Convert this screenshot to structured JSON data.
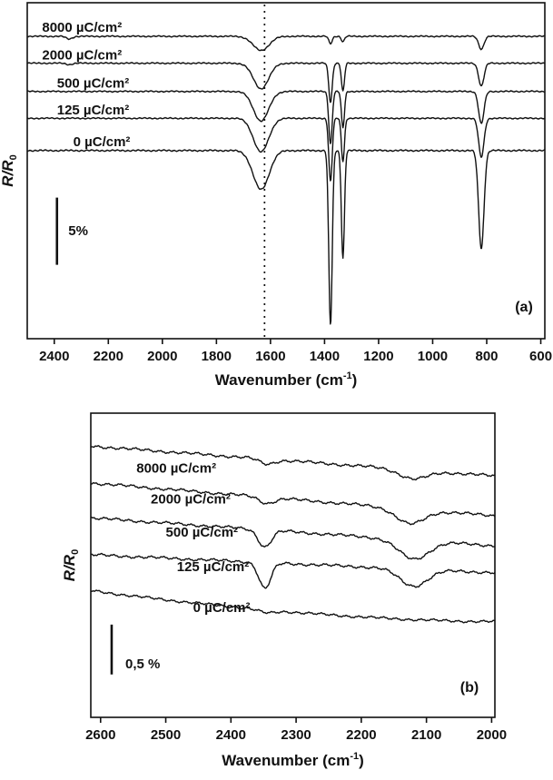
{
  "figure": {
    "background": "#ffffff",
    "ink_color": "#111111"
  },
  "chart_data": [
    {
      "id": "panel_a",
      "type": "line",
      "panel_label": "(a)",
      "xlabel": {
        "pre": "Wavenumber (cm",
        "sup": "-1",
        "post": ")"
      },
      "ylabel": {
        "main": "R/R",
        "sub": "0"
      },
      "x_axis": {
        "domain": [
          2500,
          585
        ],
        "ticks": [
          2400,
          2200,
          2000,
          1800,
          1600,
          1400,
          1200,
          1000,
          800,
          600
        ],
        "reversed": true
      },
      "y_axis": {
        "domain": [
          0,
          25
        ],
        "unit": "percent_reflectance_offset",
        "ticks": []
      },
      "grid": false,
      "dotted_line_x": 1622,
      "scale_bar": {
        "label": "5%",
        "x": 2390,
        "y_from": 14.5,
        "y_to": 19.5,
        "label_x": 2348,
        "label_y": 17.3
      },
      "series": [
        {
          "name": "8000 µC/cm²",
          "baseline_start": 2.5,
          "baseline_end": 2.5,
          "noise": 0.06,
          "shape": "linear",
          "peaks": [
            {
              "center": 2345,
              "sigma": 16,
              "depth": 0.2
            },
            {
              "center": 1635,
              "sigma": 42,
              "depth": 1.05
            },
            {
              "center": 1378,
              "sigma": 9,
              "depth": 0.55
            },
            {
              "center": 1332,
              "sigma": 8,
              "depth": 0.4
            },
            {
              "center": 820,
              "sigma": 14,
              "depth": 0.95
            }
          ],
          "label_pos": {
            "x": 2445,
            "y": 1.9
          }
        },
        {
          "name": "2000 µC/cm²",
          "baseline_start": 4.5,
          "baseline_end": 4.5,
          "noise": 0.06,
          "shape": "linear",
          "peaks": [
            {
              "center": 2345,
              "sigma": 16,
              "depth": 0.1
            },
            {
              "center": 1635,
              "sigma": 40,
              "depth": 1.9
            },
            {
              "center": 1378,
              "sigma": 9,
              "depth": 2.9
            },
            {
              "center": 1332,
              "sigma": 8,
              "depth": 2.1
            },
            {
              "center": 820,
              "sigma": 14,
              "depth": 1.7
            }
          ],
          "label_pos": {
            "x": 2445,
            "y": 3.95
          }
        },
        {
          "name": "500 µC/cm²",
          "baseline_start": 6.6,
          "baseline_end": 6.6,
          "noise": 0.06,
          "shape": "linear",
          "peaks": [
            {
              "center": 1635,
              "sigma": 40,
              "depth": 2.2
            },
            {
              "center": 1378,
              "sigma": 9,
              "depth": 3.9
            },
            {
              "center": 1332,
              "sigma": 8,
              "depth": 2.7
            },
            {
              "center": 820,
              "sigma": 14,
              "depth": 2.4
            }
          ],
          "label_pos": {
            "x": 2390,
            "y": 6.05
          }
        },
        {
          "name": "125 µC/cm²",
          "baseline_start": 8.6,
          "baseline_end": 8.6,
          "noise": 0.06,
          "shape": "linear",
          "peaks": [
            {
              "center": 1635,
              "sigma": 40,
              "depth": 2.5
            },
            {
              "center": 1378,
              "sigma": 9,
              "depth": 4.7
            },
            {
              "center": 1332,
              "sigma": 8,
              "depth": 3.2
            },
            {
              "center": 820,
              "sigma": 14,
              "depth": 2.9
            }
          ],
          "label_pos": {
            "x": 2390,
            "y": 8.05
          }
        },
        {
          "name": "0 µC/cm²",
          "baseline_start": 11.0,
          "baseline_end": 11.0,
          "noise": 0.07,
          "shape": "linear",
          "peaks": [
            {
              "center": 1635,
              "sigma": 42,
              "depth": 2.9
            },
            {
              "center": 1378,
              "sigma": 9,
              "depth": 13.0
            },
            {
              "center": 1332,
              "sigma": 8,
              "depth": 8.0
            },
            {
              "center": 820,
              "sigma": 14,
              "depth": 7.3
            }
          ],
          "label_pos": {
            "x": 2330,
            "y": 10.4
          }
        }
      ]
    },
    {
      "id": "panel_b",
      "type": "line",
      "panel_label": "(b)",
      "xlabel": {
        "pre": "Wavenumber (cm",
        "sup": "-1",
        "post": ")"
      },
      "ylabel": {
        "main": "R/R",
        "sub": "0"
      },
      "x_axis": {
        "domain": [
          2615,
          1995
        ],
        "ticks": [
          2600,
          2500,
          2400,
          2300,
          2200,
          2100,
          2000
        ],
        "reversed": true
      },
      "y_axis": {
        "domain": [
          0,
          3.05
        ],
        "unit": "percent_reflectance_offset",
        "ticks": []
      },
      "grid": false,
      "dotted_line_x": null,
      "scale_bar": {
        "label": "0,5 %",
        "x": 2583,
        "y_from": 2.12,
        "y_to": 2.62,
        "label_x": 2562,
        "label_y": 2.56
      },
      "series": [
        {
          "name": "8000 µC/cm²",
          "baseline_start": 0.33,
          "baseline_end": 0.63,
          "noise": 0.018,
          "shape": "linear",
          "peaks": [
            {
              "center": 2345,
              "sigma": 16,
              "depth": 0.05
            },
            {
              "center": 2120,
              "sigma": 30,
              "depth": 0.09
            }
          ],
          "label_pos": {
            "x": 2545,
            "y": 0.56
          }
        },
        {
          "name": "2000 µC/cm²",
          "baseline_start": 0.7,
          "baseline_end": 1.03,
          "noise": 0.018,
          "shape": "linear",
          "peaks": [
            {
              "center": 2345,
              "sigma": 16,
              "depth": 0.06
            },
            {
              "center": 2125,
              "sigma": 30,
              "depth": 0.15
            }
          ],
          "label_pos": {
            "x": 2523,
            "y": 0.87
          }
        },
        {
          "name": "500 µC/cm²",
          "baseline_start": 1.05,
          "baseline_end": 1.33,
          "noise": 0.018,
          "shape": "linear",
          "peaks": [
            {
              "center": 2348,
              "sigma": 14,
              "depth": 0.17
            },
            {
              "center": 2120,
              "sigma": 32,
              "depth": 0.19
            }
          ],
          "label_pos": {
            "x": 2500,
            "y": 1.2
          }
        },
        {
          "name": "125 µC/cm²",
          "baseline_start": 1.42,
          "baseline_end": 1.6,
          "noise": 0.018,
          "shape": "linear",
          "peaks": [
            {
              "center": 2348,
              "sigma": 13,
              "depth": 0.26
            },
            {
              "center": 2120,
              "sigma": 30,
              "depth": 0.17
            }
          ],
          "label_pos": {
            "x": 2483,
            "y": 1.55
          }
        },
        {
          "name": "0 µC/cm²",
          "baseline_start": 1.78,
          "baseline_end": 2.09,
          "noise": 0.016,
          "shape": "ease_out",
          "peaks": [
            {
              "center": 2345,
              "sigma": 18,
              "depth": 0.03
            }
          ],
          "label_pos": {
            "x": 2458,
            "y": 1.96
          }
        }
      ]
    }
  ]
}
